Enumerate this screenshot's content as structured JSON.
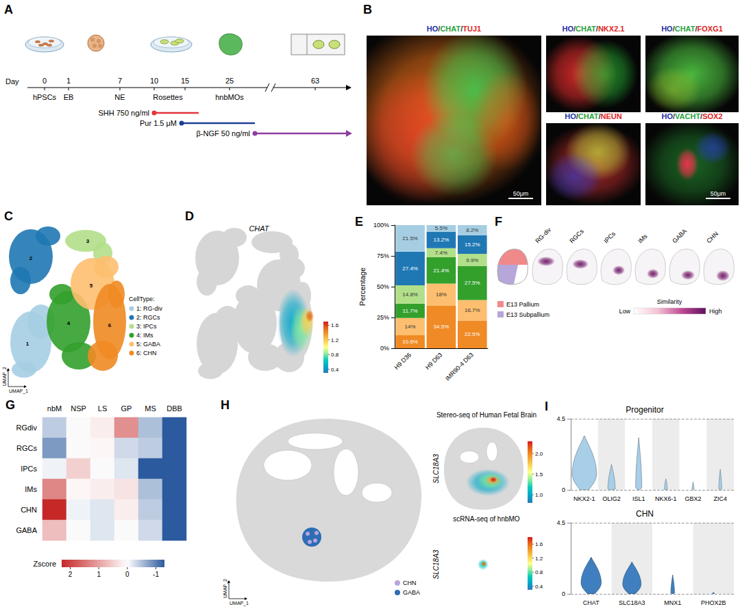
{
  "figure": {
    "A": {
      "letter": "A",
      "axis_label": "Day",
      "days": [
        0,
        1,
        7,
        10,
        15,
        25,
        63
      ],
      "stages": [
        "hPSCs",
        "EB",
        "NE",
        "Rosettes",
        "hnbMOs"
      ],
      "treatments": [
        {
          "label": "SHH 750 ng/ml",
          "color": "#e4343a"
        },
        {
          "label": "Pur 1.5 μM",
          "color": "#1c3f94"
        },
        {
          "label": "β-NGF 50 ng/ml",
          "color": "#8e3fa0"
        }
      ]
    },
    "B": {
      "letter": "B",
      "separator": "/",
      "images": [
        {
          "channels": [
            "HO",
            "CHAT",
            "TUJ1"
          ],
          "colors": [
            "#1b2fa8",
            "#27a33a",
            "#e02424"
          ],
          "scale_bar": "50μm"
        },
        {
          "channels": [
            "HO",
            "CHAT",
            "NKX2.1"
          ],
          "colors": [
            "#1b2fa8",
            "#27a33a",
            "#e02424"
          ]
        },
        {
          "channels": [
            "HO",
            "CHAT",
            "FOXG1"
          ],
          "colors": [
            "#1b2fa8",
            "#27a33a",
            "#e02424"
          ]
        },
        {
          "channels": [
            "HO",
            "CHAT",
            "NEUN"
          ],
          "colors": [
            "#1b2fa8",
            "#27a33a",
            "#e02424"
          ]
        },
        {
          "channels": [
            "HO",
            "VACHT",
            "SOX2"
          ],
          "colors": [
            "#1b2fa8",
            "#27a33a",
            "#e02424"
          ],
          "scale_bar": "50μm"
        }
      ]
    },
    "C": {
      "letter": "C",
      "x_label": "UMAP_1",
      "y_label": "UMAP_2",
      "legend_title": "CellType:",
      "clusters": [
        {
          "number": 1,
          "label": "1: RG-div",
          "color": "#a6cee3"
        },
        {
          "number": 2,
          "label": "2: RGCs",
          "color": "#1f78b4"
        },
        {
          "number": 3,
          "label": "3: IPCs",
          "color": "#b2df8a"
        },
        {
          "number": 4,
          "label": "4: IMs",
          "color": "#33a02c"
        },
        {
          "number": 5,
          "label": "5: GABA",
          "color": "#fdbf6f"
        },
        {
          "number": 6,
          "label": "6: CHN",
          "color": "#f08a24"
        }
      ]
    },
    "D": {
      "letter": "D",
      "title": "CHAT",
      "colorbar": {
        "range": [
          0.3,
          1.7
        ],
        "ticks": [
          0.4,
          0.8,
          1.2,
          1.6
        ]
      }
    },
    "F": {
      "letter": "F",
      "maps": [
        "RG-div",
        "RGCs",
        "IPCs",
        "IMs",
        "GABA",
        "CHN"
      ],
      "regions": [
        {
          "label": "E13 Pallium",
          "color": "#f08a8a"
        },
        {
          "label": "E13 Subpallium",
          "color": "#b7a6d9"
        }
      ],
      "scale": {
        "title": "Similarity",
        "low": "Low",
        "high": "High"
      }
    },
    "H": {
      "letter": "H",
      "x_label": "UMAP_1",
      "y_label": "UMAP_2",
      "legend": [
        {
          "label": "CHN",
          "color": "#b7a6d9"
        },
        {
          "label": "GABA",
          "color": "#2d6db5"
        }
      ],
      "maps": [
        {
          "title": "Stereo-seq of Human Fetal Brain",
          "gene": "SLC18A3",
          "colorbar": {
            "range": [
              0.8,
              2.3
            ],
            "ticks": [
              {
                "value": 1,
                "label": "1.0"
              },
              1.5,
              {
                "value": 2,
                "label": "2.0"
              }
            ]
          }
        },
        {
          "title": "scRNA-seq of hnbMO",
          "gene": "SLC18A3",
          "colorbar": {
            "range": [
              0.3,
              1.8
            ],
            "ticks": [
              0.4,
              0.8,
              1.2,
              1.6
            ]
          }
        }
      ]
    }
  },
  "chart_data": [
    {
      "panel": "E",
      "type": "bar",
      "stacked": true,
      "data_labels": true,
      "grid": false,
      "categories": [
        "H9 D36",
        "H9 D63",
        "IMR90-4 D63"
      ],
      "y_label": "Percentage",
      "ylim": [
        0,
        100
      ],
      "yticks": [
        {
          "value": 0,
          "label": "0%"
        },
        {
          "value": 25,
          "label": "25%"
        },
        {
          "value": 50,
          "label": "50%"
        },
        {
          "value": 75,
          "label": "75%"
        },
        {
          "value": 100,
          "label": "100%"
        }
      ],
      "series": [
        {
          "color": "#f08a24",
          "values": [
            10.6,
            34.5,
            22.5
          ],
          "value_labels": [
            "10.6%",
            "34.5%",
            "22.5%"
          ]
        },
        {
          "color": "#fdbf6f",
          "values": [
            14,
            18,
            16.7
          ],
          "value_labels": [
            "14%",
            "18%",
            "16.7%"
          ]
        },
        {
          "color": "#33a02c",
          "values": [
            11.7,
            21.4,
            27.5
          ],
          "value_labels": [
            "11.7%",
            "21.4%",
            "27.5%"
          ]
        },
        {
          "color": "#b2df8a",
          "values": [
            14.8,
            7.4,
            9.9
          ],
          "value_labels": [
            "14.8%",
            "7.4%",
            "9.9%"
          ]
        },
        {
          "color": "#1f78b4",
          "values": [
            27.4,
            13.2,
            15.2
          ],
          "value_labels": [
            "27.4%",
            "13.2%",
            "15.2%"
          ]
        },
        {
          "color": "#a6cee3",
          "values": [
            21.5,
            5.5,
            8.2
          ],
          "value_labels": [
            "21.5%",
            "5.5%",
            "8.2%"
          ]
        }
      ]
    },
    {
      "panel": "G",
      "type": "heatmap",
      "x": [
        "nbM",
        "NSP",
        "LS",
        "GP",
        "MS",
        "DBB"
      ],
      "y": [
        "RGdiv",
        "RGCs",
        "IPCs",
        "IMs",
        "CHN",
        "GABA"
      ],
      "cells": [
        [
          -0.4,
          0.0,
          0.2,
          1.2,
          -0.5,
          -1.3
        ],
        [
          -0.8,
          0.0,
          0.1,
          -0.3,
          -0.4,
          -1.3
        ],
        [
          -0.1,
          0.5,
          0.0,
          -0.2,
          -1.3,
          -1.3
        ],
        [
          1.3,
          0.1,
          0.2,
          0.3,
          -0.5,
          -1.3
        ],
        [
          2.3,
          -0.1,
          -0.2,
          0.2,
          -0.4,
          -1.3
        ],
        [
          0.7,
          0.0,
          -0.2,
          0.0,
          -0.3,
          -1.3
        ]
      ],
      "colorbar": {
        "title": "Zscore",
        "range": [
          -1.3,
          2.3
        ],
        "ticks": [
          2,
          1,
          0,
          -1
        ]
      }
    },
    {
      "panel": "I",
      "type": "violin",
      "title": "Progenitor",
      "grid": true,
      "color": "#a9cfe8",
      "categories": [
        "NKX2-1",
        "OLIG2",
        "ISL1",
        "NKX6-1",
        "GBX2",
        "ZIC4"
      ],
      "max": [
        3.4,
        1.6,
        3.3,
        0.7,
        0.5,
        1.3
      ],
      "peak": [
        1.0,
        0.05,
        0.1,
        0.02,
        0.02,
        0.02
      ],
      "width": [
        1.0,
        0.3,
        0.25,
        0.12,
        0.08,
        0.12
      ],
      "ylim": [
        0,
        4.5
      ],
      "yticks": [
        0,
        4.5
      ]
    },
    {
      "type": "violin",
      "title": "CHN",
      "grid": true,
      "color": "#3f7fbf",
      "categories": [
        "CHAT",
        "SLC18A3",
        "MNX1",
        "PHOX2B"
      ],
      "max": [
        2.3,
        2.0,
        1.2,
        0.1
      ],
      "peak": [
        0.7,
        0.6,
        0.02,
        0.02
      ],
      "width": [
        0.55,
        0.5,
        0.1,
        0.05
      ],
      "ylim": [
        0,
        4.5
      ],
      "yticks": [
        0,
        4.5
      ]
    }
  ]
}
